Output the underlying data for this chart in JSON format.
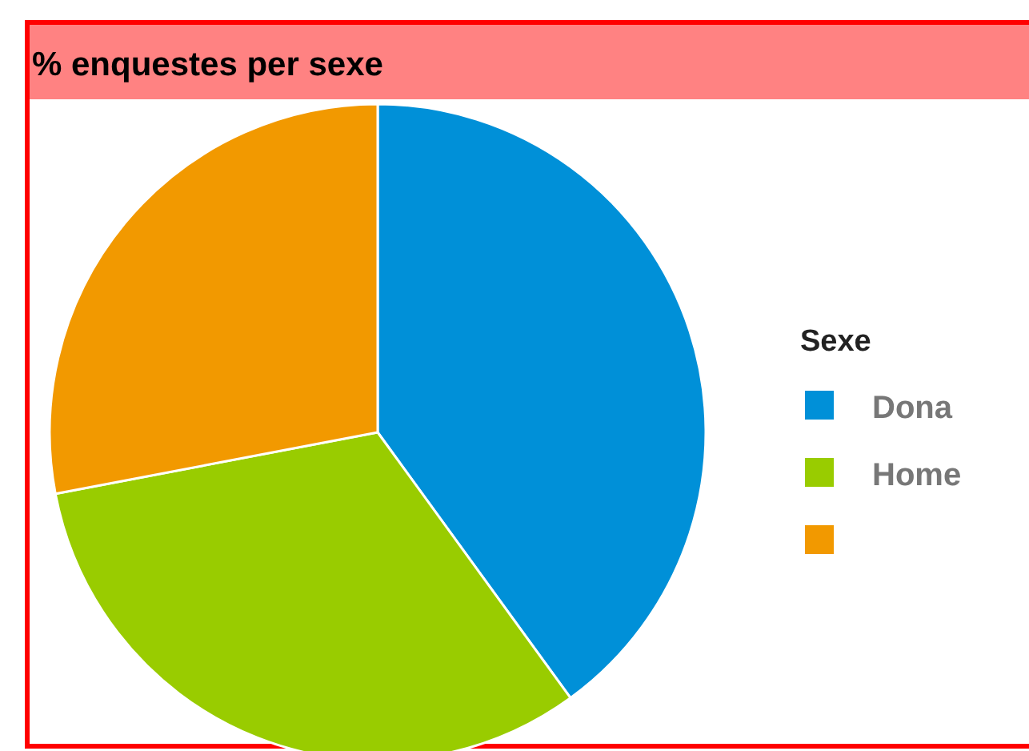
{
  "chart_data": {
    "type": "pie",
    "title": "% enquestes per sexe",
    "legend_title": "Sexe",
    "legend": "right",
    "categories": [
      "Dona",
      "Home",
      null
    ],
    "values": [
      40,
      32,
      28
    ],
    "colors": [
      "#0090d8",
      "#99cc00",
      "#f29900"
    ]
  }
}
